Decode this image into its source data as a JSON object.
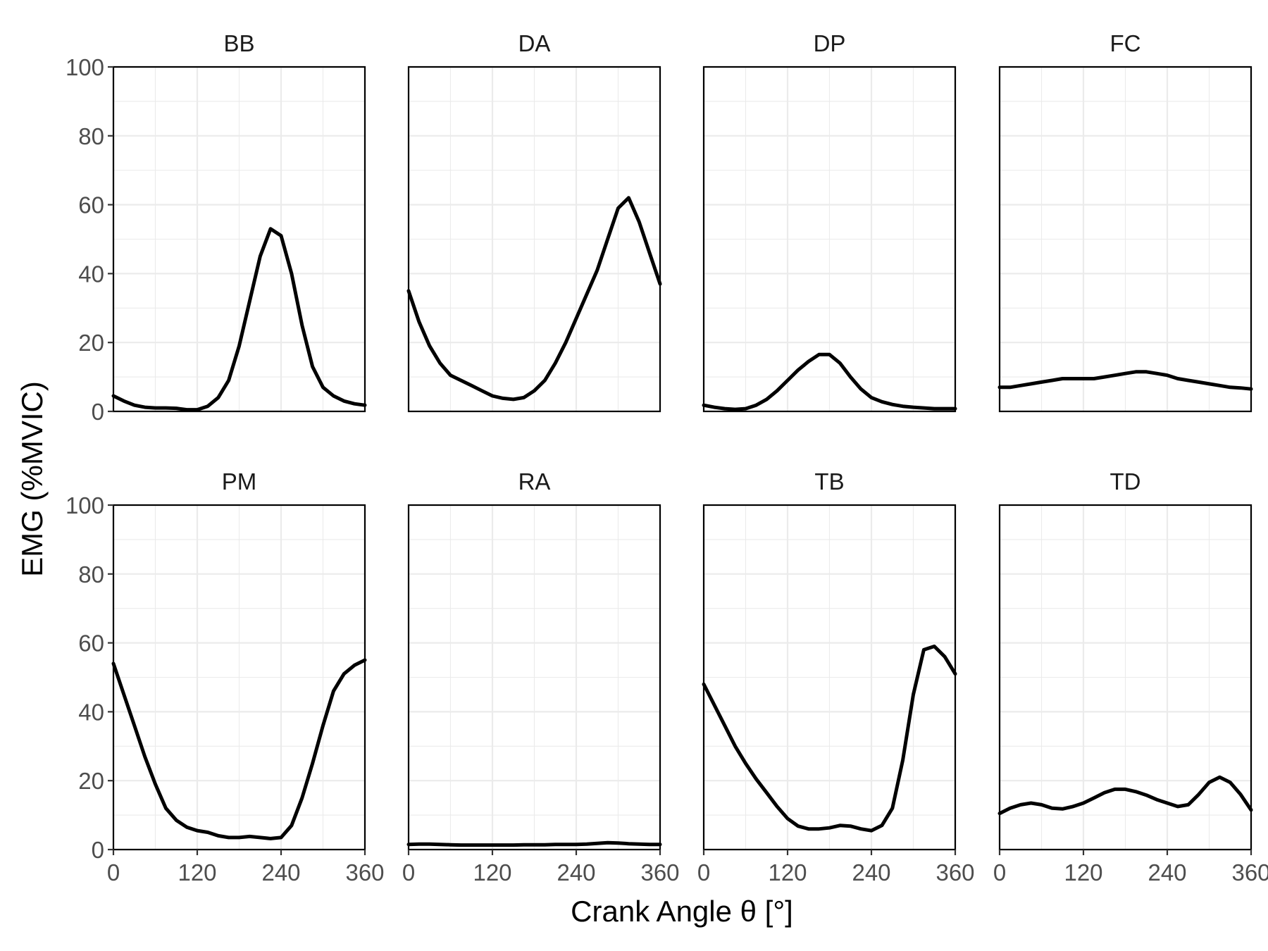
{
  "chart_data": {
    "type": "line",
    "layout": "faceted small multiples, 2 rows x 4 columns",
    "xlabel": "Crank Angle θ [°]",
    "ylabel": "EMG (%MVIC)",
    "xlim": [
      0,
      360
    ],
    "ylim": [
      0,
      100
    ],
    "xticks": [
      0,
      120,
      240,
      360
    ],
    "yticks": [
      0,
      20,
      40,
      60,
      80,
      100
    ],
    "x_tick_labels": [
      "0",
      "120",
      "240",
      "360"
    ],
    "y_tick_labels": [
      "0",
      "20",
      "40",
      "60",
      "80",
      "100"
    ],
    "grid": true,
    "theme": "bw",
    "line_color": "#000000",
    "x": [
      0,
      15,
      30,
      45,
      60,
      75,
      90,
      105,
      120,
      135,
      150,
      165,
      180,
      195,
      210,
      225,
      240,
      255,
      270,
      285,
      300,
      315,
      330,
      345,
      360
    ],
    "facets": [
      {
        "name": "BB",
        "values": [
          4.5,
          3,
          1.8,
          1.2,
          1,
          1,
          0.9,
          0.5,
          0.5,
          1.5,
          4,
          9,
          19,
          32,
          45,
          53,
          51,
          40,
          25,
          13,
          7,
          4.5,
          3,
          2.2,
          1.8
        ]
      },
      {
        "name": "DA",
        "values": [
          35,
          26,
          19,
          14,
          10.5,
          9,
          7.5,
          6,
          4.5,
          3.8,
          3.5,
          4,
          6,
          9,
          14,
          20,
          27,
          34,
          41,
          50,
          59,
          62,
          55,
          46,
          37
        ]
      },
      {
        "name": "DP",
        "values": [
          1.8,
          1.2,
          0.8,
          0.6,
          0.8,
          1.8,
          3.5,
          6,
          9,
          12,
          14.5,
          16.5,
          16.5,
          14,
          10,
          6.5,
          4,
          2.8,
          2,
          1.5,
          1.2,
          1,
          0.8,
          0.8,
          0.8
        ]
      },
      {
        "name": "FC",
        "values": [
          7,
          7,
          7.5,
          8,
          8.5,
          9,
          9.5,
          9.5,
          9.5,
          9.5,
          10,
          10.5,
          11,
          11.5,
          11.5,
          11,
          10.5,
          9.5,
          9,
          8.5,
          8,
          7.5,
          7,
          6.8,
          6.5
        ]
      },
      {
        "name": "PM",
        "values": [
          54,
          45,
          36,
          27,
          19,
          12,
          8.5,
          6.5,
          5.5,
          5,
          4,
          3.5,
          3.5,
          3.8,
          3.5,
          3.2,
          3.5,
          7,
          15,
          25,
          36,
          46,
          51,
          53.5,
          55
        ]
      },
      {
        "name": "RA",
        "values": [
          1.5,
          1.6,
          1.6,
          1.5,
          1.4,
          1.3,
          1.3,
          1.3,
          1.3,
          1.3,
          1.3,
          1.4,
          1.4,
          1.4,
          1.5,
          1.5,
          1.5,
          1.6,
          1.8,
          2,
          1.9,
          1.7,
          1.6,
          1.5,
          1.5
        ]
      },
      {
        "name": "TB",
        "values": [
          48,
          42,
          36,
          30,
          25,
          20.5,
          16.5,
          12.5,
          9,
          6.8,
          6,
          6,
          6.3,
          7,
          6.8,
          6,
          5.5,
          7,
          12,
          26,
          45,
          58,
          59,
          56,
          51
        ]
      },
      {
        "name": "TD",
        "values": [
          10.5,
          12,
          13,
          13.5,
          13,
          12,
          11.8,
          12.5,
          13.5,
          15,
          16.5,
          17.5,
          17.5,
          16.8,
          15.8,
          14.5,
          13.5,
          12.5,
          13,
          16,
          19.5,
          21,
          19.5,
          16,
          11.5
        ]
      }
    ]
  }
}
